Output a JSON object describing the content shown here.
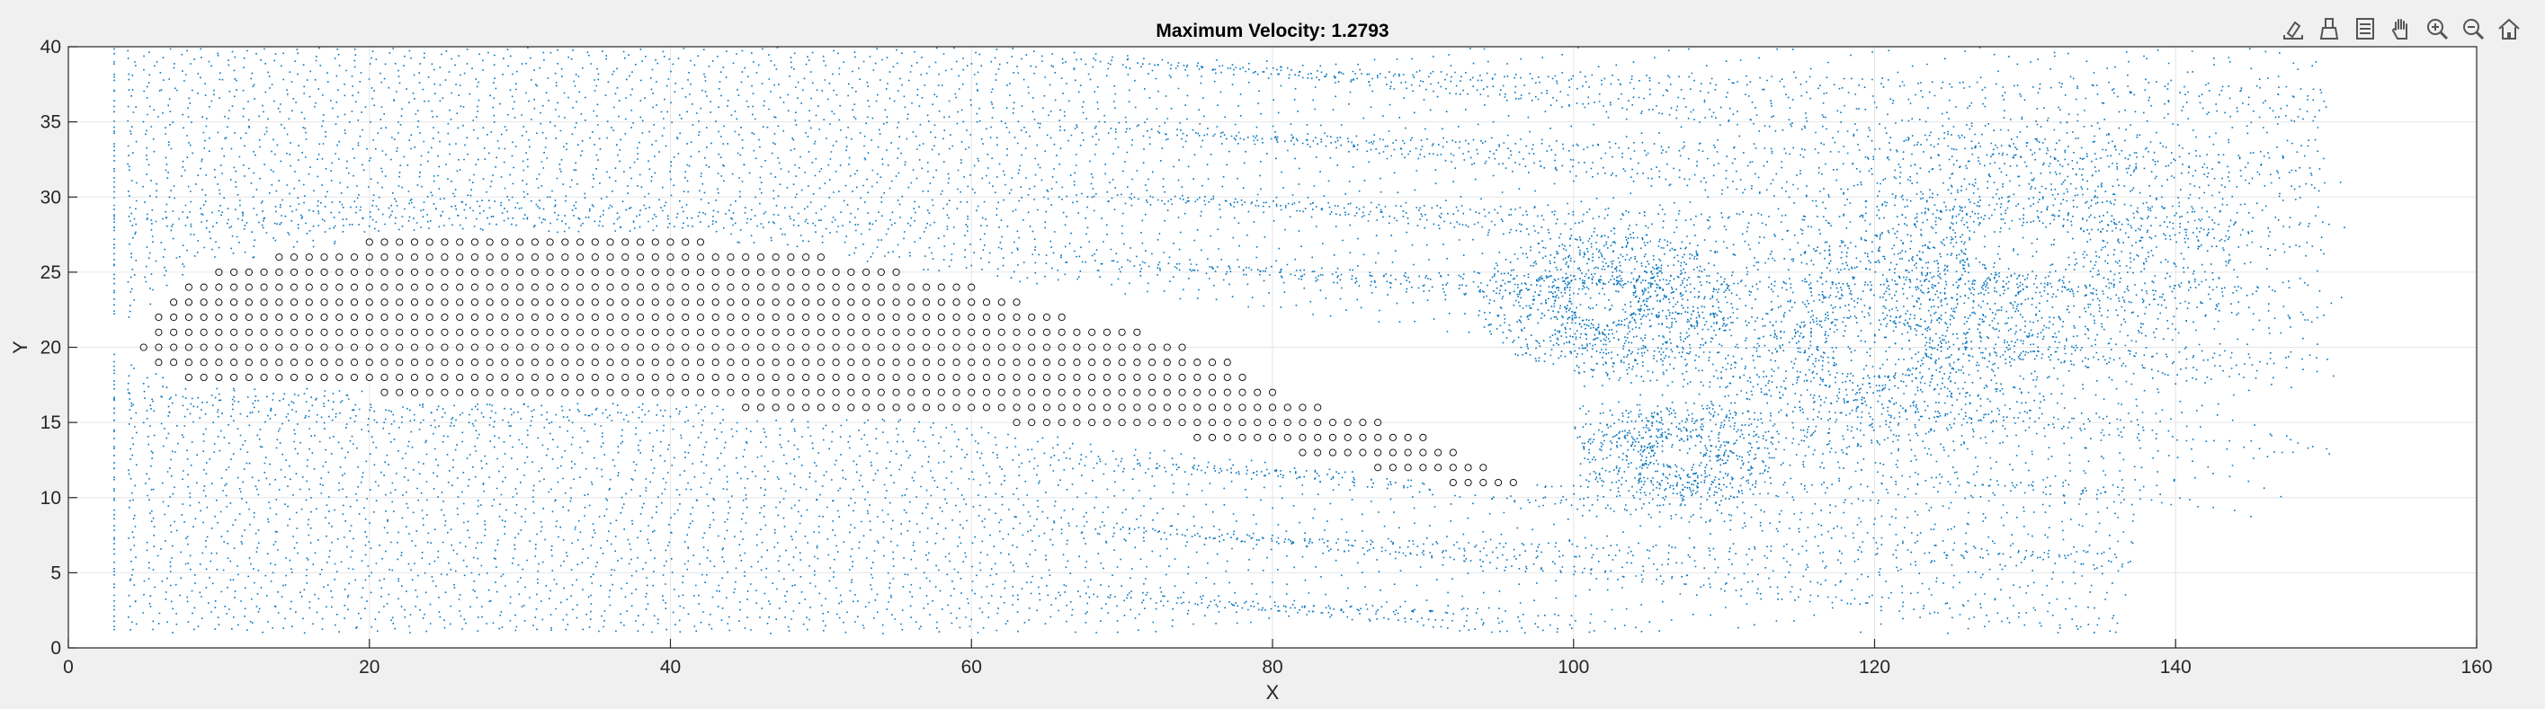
{
  "colors": {
    "figure_bg": "#f0f0f0",
    "axes_bg": "#ffffff",
    "particles": "#0072bd",
    "obstacle": "#000000",
    "grid": "#e6e6e6",
    "text": "#262626"
  },
  "toolbar": [
    {
      "name": "export-icon"
    },
    {
      "name": "brush-icon"
    },
    {
      "name": "legend-icon"
    },
    {
      "name": "pan-icon"
    },
    {
      "name": "zoom-in-icon"
    },
    {
      "name": "zoom-out-icon"
    },
    {
      "name": "home-icon"
    }
  ],
  "chart_data": {
    "type": "scatter",
    "title": "Maximum Velocity: 1.2793",
    "xlabel": "X",
    "ylabel": "Y",
    "xlim": [
      0,
      160
    ],
    "ylim": [
      0,
      40
    ],
    "xticks": [
      0,
      20,
      40,
      60,
      80,
      100,
      120,
      140,
      160
    ],
    "yticks": [
      0,
      5,
      10,
      15,
      20,
      25,
      30,
      35,
      40
    ],
    "grid": true,
    "series": [
      {
        "kind": "particles",
        "marker": "dot",
        "description_of_domain": "x 2–152, y 1–40",
        "points": "dense particle trace field"
      },
      {
        "kind": "obstacle",
        "marker": "circle",
        "rows": [
          {
            "y": 27,
            "x": [
              20,
              42
            ]
          },
          {
            "y": 26,
            "x": [
              14,
              50
            ]
          },
          {
            "y": 25,
            "x": [
              10,
              55
            ]
          },
          {
            "y": 24,
            "x": [
              8,
              60
            ]
          },
          {
            "y": 23,
            "x": [
              7,
              63
            ]
          },
          {
            "y": 22,
            "x": [
              6,
              66
            ]
          },
          {
            "y": 21,
            "x": [
              6,
              71
            ]
          },
          {
            "y": 20,
            "x": [
              5,
              74
            ]
          },
          {
            "y": 19,
            "x": [
              6,
              77
            ]
          },
          {
            "y": 18,
            "x": [
              8,
              78
            ]
          },
          {
            "y": 17,
            "x": [
              21,
              80
            ]
          },
          {
            "y": 16,
            "x": [
              45,
              83
            ]
          },
          {
            "y": 15,
            "x": [
              63,
              87
            ]
          },
          {
            "y": 14,
            "x": [
              75,
              90
            ]
          },
          {
            "y": 13,
            "x": [
              82,
              92
            ]
          },
          {
            "y": 12,
            "x": [
              87,
              94
            ]
          },
          {
            "y": 11,
            "x": [
              92,
              96
            ]
          }
        ]
      }
    ]
  }
}
